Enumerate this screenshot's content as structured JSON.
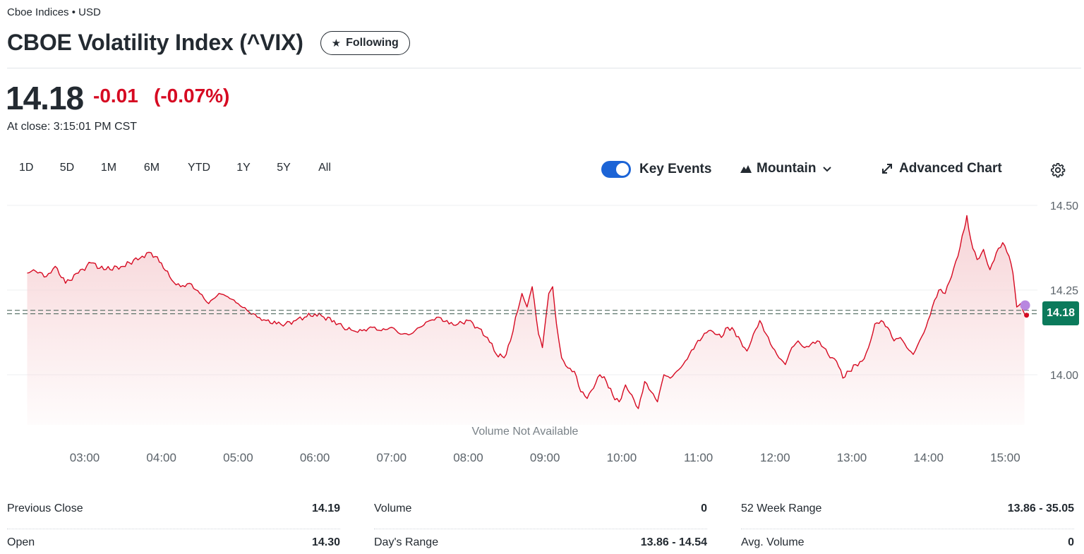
{
  "header": {
    "exchange": "Cboe Indices • USD",
    "title": "CBOE Volatility Index (^VIX)",
    "follow_label": "Following"
  },
  "quote": {
    "price": "14.18",
    "change": "-0.01",
    "change_percent": "(-0.07%)",
    "close_time": "At close: 3:15:01 PM CST",
    "price_tag": "14.18"
  },
  "toolbar": {
    "ranges": [
      "1D",
      "5D",
      "1M",
      "6M",
      "YTD",
      "1Y",
      "5Y",
      "All"
    ],
    "key_events_label": "Key Events",
    "key_events_on": true,
    "chart_type_label": "Mountain",
    "advanced_label": "Advanced Chart"
  },
  "chart_data": {
    "type": "area",
    "title": "",
    "xlabel": "",
    "ylabel": "",
    "x_ticks": [
      "03:00",
      "04:00",
      "05:00",
      "06:00",
      "07:00",
      "08:00",
      "09:00",
      "10:00",
      "11:00",
      "12:00",
      "13:00",
      "14:00",
      "15:00"
    ],
    "y_ticks": [
      14.5,
      14.25,
      14.0
    ],
    "y_tick_labels": [
      "14.50",
      "14.25",
      "14.00"
    ],
    "ylim": [
      13.85,
      14.51
    ],
    "previous_close": 14.19,
    "last": 14.18,
    "annotation": "Volume Not Available",
    "line_color": "#d60a22",
    "fill_color": "#f7d4d7",
    "series": [
      {
        "values": [
          [
            "02:15",
            14.3
          ],
          [
            "02:20",
            14.31
          ],
          [
            "02:30",
            14.29
          ],
          [
            "02:37",
            14.32
          ],
          [
            "02:45",
            14.27
          ],
          [
            "02:55",
            14.3
          ],
          [
            "03:05",
            14.33
          ],
          [
            "03:15",
            14.31
          ],
          [
            "03:30",
            14.32
          ],
          [
            "03:45",
            14.35
          ],
          [
            "03:52",
            14.36
          ],
          [
            "04:00",
            14.33
          ],
          [
            "04:08",
            14.28
          ],
          [
            "04:15",
            14.26
          ],
          [
            "04:22",
            14.27
          ],
          [
            "04:30",
            14.24
          ],
          [
            "04:37",
            14.21
          ],
          [
            "04:45",
            14.24
          ],
          [
            "04:52",
            14.23
          ],
          [
            "05:00",
            14.21
          ],
          [
            "05:07",
            14.19
          ],
          [
            "05:15",
            14.17
          ],
          [
            "05:22",
            14.16
          ],
          [
            "05:30",
            14.15
          ],
          [
            "05:37",
            14.15
          ],
          [
            "05:45",
            14.16
          ],
          [
            "05:52",
            14.17
          ],
          [
            "06:00",
            14.18
          ],
          [
            "06:07",
            14.17
          ],
          [
            "06:15",
            14.16
          ],
          [
            "06:22",
            14.14
          ],
          [
            "06:30",
            14.13
          ],
          [
            "06:37",
            14.13
          ],
          [
            "06:45",
            14.14
          ],
          [
            "06:52",
            14.13
          ],
          [
            "07:00",
            14.14
          ],
          [
            "07:07",
            14.12
          ],
          [
            "07:15",
            14.12
          ],
          [
            "07:22",
            14.14
          ],
          [
            "07:30",
            14.16
          ],
          [
            "07:37",
            14.17
          ],
          [
            "07:45",
            14.15
          ],
          [
            "07:52",
            14.15
          ],
          [
            "08:00",
            14.16
          ],
          [
            "08:07",
            14.14
          ],
          [
            "08:15",
            14.11
          ],
          [
            "08:22",
            14.06
          ],
          [
            "08:28",
            14.05
          ],
          [
            "08:33",
            14.1
          ],
          [
            "08:37",
            14.17
          ],
          [
            "08:42",
            14.24
          ],
          [
            "08:46",
            14.2
          ],
          [
            "08:50",
            14.26
          ],
          [
            "08:55",
            14.12
          ],
          [
            "08:58",
            14.08
          ],
          [
            "09:03",
            14.24
          ],
          [
            "09:06",
            14.26
          ],
          [
            "09:09",
            14.15
          ],
          [
            "09:13",
            14.05
          ],
          [
            "09:18",
            14.02
          ],
          [
            "09:23",
            14.01
          ],
          [
            "09:28",
            13.95
          ],
          [
            "09:33",
            13.93
          ],
          [
            "09:38",
            13.96
          ],
          [
            "09:43",
            14.0
          ],
          [
            "09:48",
            13.98
          ],
          [
            "09:53",
            13.94
          ],
          [
            "09:58",
            13.92
          ],
          [
            "10:03",
            13.97
          ],
          [
            "10:08",
            13.94
          ],
          [
            "10:13",
            13.9
          ],
          [
            "10:18",
            13.98
          ],
          [
            "10:23",
            13.95
          ],
          [
            "10:28",
            13.92
          ],
          [
            "10:33",
            14.0
          ],
          [
            "10:38",
            13.99
          ],
          [
            "10:43",
            14.01
          ],
          [
            "10:48",
            14.03
          ],
          [
            "10:53",
            14.06
          ],
          [
            "10:58",
            14.09
          ],
          [
            "11:03",
            14.11
          ],
          [
            "11:08",
            14.13
          ],
          [
            "11:13",
            14.12
          ],
          [
            "11:18",
            14.11
          ],
          [
            "11:23",
            14.14
          ],
          [
            "11:28",
            14.13
          ],
          [
            "11:33",
            14.1
          ],
          [
            "11:38",
            14.07
          ],
          [
            "11:43",
            14.12
          ],
          [
            "11:48",
            14.16
          ],
          [
            "11:53",
            14.12
          ],
          [
            "11:58",
            14.08
          ],
          [
            "12:03",
            14.05
          ],
          [
            "12:08",
            14.03
          ],
          [
            "12:13",
            14.08
          ],
          [
            "12:18",
            14.1
          ],
          [
            "12:23",
            14.08
          ],
          [
            "12:28",
            14.09
          ],
          [
            "12:33",
            14.1
          ],
          [
            "12:38",
            14.08
          ],
          [
            "12:43",
            14.05
          ],
          [
            "12:48",
            14.04
          ],
          [
            "12:53",
            13.99
          ],
          [
            "12:58",
            14.01
          ],
          [
            "13:03",
            14.03
          ],
          [
            "13:08",
            14.04
          ],
          [
            "13:13",
            14.08
          ],
          [
            "13:18",
            14.15
          ],
          [
            "13:23",
            14.16
          ],
          [
            "13:28",
            14.14
          ],
          [
            "13:33",
            14.1
          ],
          [
            "13:38",
            14.11
          ],
          [
            "13:43",
            14.08
          ],
          [
            "13:48",
            14.06
          ],
          [
            "13:53",
            14.1
          ],
          [
            "13:58",
            14.14
          ],
          [
            "14:03",
            14.2
          ],
          [
            "14:08",
            14.25
          ],
          [
            "14:13",
            14.24
          ],
          [
            "14:18",
            14.29
          ],
          [
            "14:23",
            14.35
          ],
          [
            "14:28",
            14.43
          ],
          [
            "14:30",
            14.47
          ],
          [
            "14:33",
            14.4
          ],
          [
            "14:38",
            14.34
          ],
          [
            "14:43",
            14.37
          ],
          [
            "14:48",
            14.31
          ],
          [
            "14:53",
            14.36
          ],
          [
            "14:58",
            14.39
          ],
          [
            "15:03",
            14.35
          ],
          [
            "15:06",
            14.3
          ],
          [
            "15:09",
            14.2
          ],
          [
            "15:12",
            14.21
          ],
          [
            "15:15",
            14.18
          ]
        ]
      }
    ]
  },
  "stats": [
    {
      "label": "Previous Close",
      "value": "14.19"
    },
    {
      "label": "Volume",
      "value": "0"
    },
    {
      "label": "52 Week Range",
      "value": "13.86 - 35.05"
    },
    {
      "label": "Open",
      "value": "14.30"
    },
    {
      "label": "Day's Range",
      "value": "13.86 - 14.54"
    },
    {
      "label": "Avg. Volume",
      "value": "0"
    }
  ]
}
